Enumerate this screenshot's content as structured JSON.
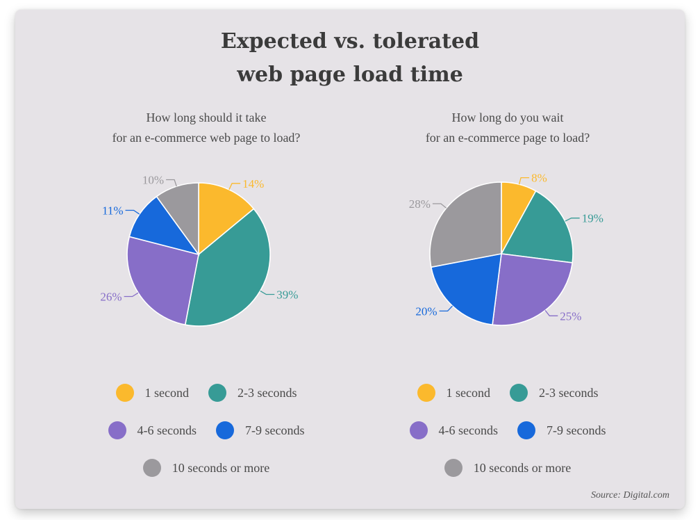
{
  "title_line1": "Expected vs. tolerated",
  "title_line2": "web page load time",
  "source": "Source: Digital.com",
  "colors": {
    "1 second": "#fbb92d",
    "2-3 seconds": "#379b96",
    "4-6 seconds": "#876ec8",
    "7-9 seconds": "#1769db",
    "10 seconds or more": "#9b999d"
  },
  "chart_data": [
    {
      "type": "pie",
      "subtitle_line1": "How long should it take",
      "subtitle_line2": "for an e-commerce web page to load?",
      "categories": [
        "1 second",
        "2-3 seconds",
        "4-6 seconds",
        "7-9 seconds",
        "10 seconds or more"
      ],
      "values": [
        14,
        39,
        26,
        11,
        10
      ],
      "labels": [
        "14%",
        "39%",
        "26%",
        "11%",
        "10%"
      ],
      "legend": [
        "1 second",
        "2-3 seconds",
        "4-6 seconds",
        "7-9 seconds",
        "10 seconds or more"
      ],
      "legend_placement": "bottom"
    },
    {
      "type": "pie",
      "subtitle_line1": "How long do you wait",
      "subtitle_line2": "for an e-commerce page to load?",
      "categories": [
        "1 second",
        "2-3 seconds",
        "4-6 seconds",
        "7-9 seconds",
        "10 seconds or more"
      ],
      "values": [
        8,
        19,
        25,
        20,
        28
      ],
      "labels": [
        "8%",
        "19%",
        "25%",
        "20%",
        "28%"
      ],
      "legend": [
        "1 second",
        "2-3 seconds",
        "4-6 seconds",
        "7-9 seconds",
        "10 seconds or more"
      ],
      "legend_placement": "bottom"
    }
  ]
}
